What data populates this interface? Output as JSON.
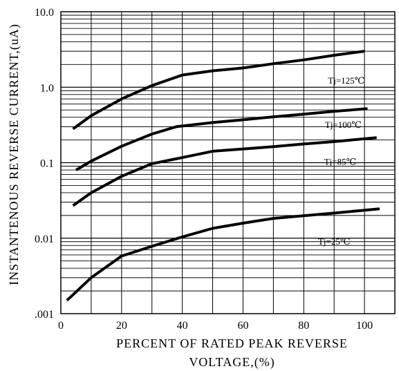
{
  "chart_data": {
    "type": "line",
    "xlabel_lines": [
      "PERCENT OF RATED PEAK REVERSE",
      "VOLTAGE,(%)"
    ],
    "ylabel": "INSTANTENOUS REVERSE CURRENT,(uA)",
    "xlim": [
      0,
      110
    ],
    "ylim": [
      0.001,
      10
    ],
    "yscale": "log",
    "grid": true,
    "x_ticks": [
      0,
      20,
      40,
      60,
      80,
      100
    ],
    "x_tick_labels": [
      "0",
      "20",
      "40",
      "60",
      "80",
      "100"
    ],
    "y_ticks": [
      0.001,
      0.01,
      0.1,
      1,
      10
    ],
    "y_tick_labels": [
      ".001",
      "0.01",
      "0.1",
      "1.0",
      "10.0"
    ],
    "series": [
      {
        "name": "Tj=125℃",
        "x": [
          4,
          10,
          20,
          30,
          40,
          50,
          60,
          70,
          80,
          90,
          100
        ],
        "y": [
          0.28,
          0.42,
          0.7,
          1.05,
          1.45,
          1.65,
          1.8,
          2.05,
          2.3,
          2.65,
          3.0
        ]
      },
      {
        "name": "Tj=100℃",
        "x": [
          5,
          10,
          20,
          30,
          38,
          50,
          60,
          70,
          80,
          90,
          101
        ],
        "y": [
          0.08,
          0.105,
          0.165,
          0.24,
          0.3,
          0.34,
          0.37,
          0.405,
          0.44,
          0.48,
          0.52
        ]
      },
      {
        "name": "Tj=85℃",
        "x": [
          4,
          10,
          20,
          30,
          40,
          50,
          60,
          70,
          80,
          90,
          104
        ],
        "y": [
          0.027,
          0.04,
          0.066,
          0.097,
          0.117,
          0.142,
          0.152,
          0.163,
          0.177,
          0.19,
          0.215
        ]
      },
      {
        "name": "Tj=25℃",
        "x": [
          2,
          10,
          20,
          30,
          40,
          50,
          60,
          70,
          80,
          90,
          105
        ],
        "y": [
          0.0015,
          0.003,
          0.0058,
          0.0078,
          0.0104,
          0.0135,
          0.0158,
          0.0183,
          0.0198,
          0.0215,
          0.0245
        ]
      }
    ],
    "series_colors": [
      "#000000",
      "#000000",
      "#000000",
      "#000000"
    ],
    "grid_color": "#000000"
  }
}
